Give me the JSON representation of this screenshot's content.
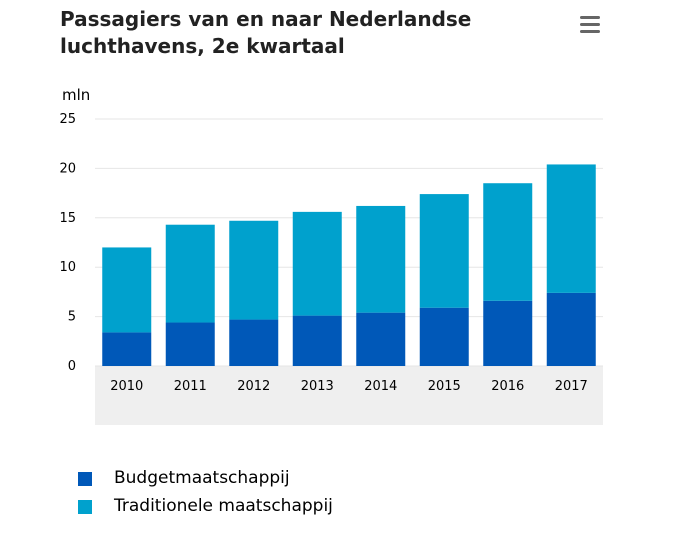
{
  "header": {
    "title": "Passagiers van en naar Nederlandse luchthavens, 2e kwartaal",
    "menu_icon": "hamburger-menu-icon"
  },
  "colors": {
    "budget": "#0058B8",
    "traditioneel": "#00A1CD",
    "gridline": "#E6E6E6",
    "axis_band": "#EFEFEF",
    "text": "#000000",
    "menu_icon": "#666666"
  },
  "chart_data": {
    "type": "bar",
    "stacked": true,
    "title": "Passagiers van en naar Nederlandse luchthavens, 2e kwartaal",
    "ylabel": "mln",
    "xlabel": "",
    "ylim": [
      0,
      25
    ],
    "yticks": [
      "0",
      "5",
      "10",
      "15",
      "20",
      "25"
    ],
    "grid": true,
    "legend_position": "bottom-left",
    "categories": [
      "2010",
      "2011",
      "2012",
      "2013",
      "2014",
      "2015",
      "2016",
      "2017"
    ],
    "series": [
      {
        "name": "Budgetmaatschappij",
        "color": "#0058B8",
        "values": [
          3.4,
          4.4,
          4.7,
          5.1,
          5.4,
          5.9,
          6.6,
          7.4
        ]
      },
      {
        "name": "Traditionele maatschappij",
        "color": "#00A1CD",
        "values": [
          8.6,
          9.9,
          10.0,
          10.5,
          10.8,
          11.5,
          11.9,
          13.0
        ]
      }
    ]
  }
}
